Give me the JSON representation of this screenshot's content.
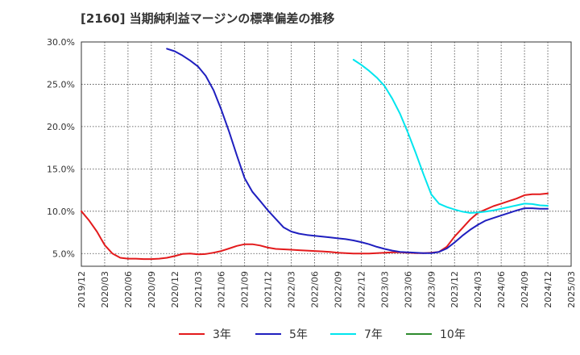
{
  "title": "[2160]  当期純利益マージンの標準偏差の推移",
  "chart_data": {
    "type": "line",
    "title": "[2160]  当期純利益マージンの標準偏差の推移",
    "xlabel": "",
    "ylabel": "",
    "ylim": [
      3.5,
      30.0
    ],
    "grid": true,
    "legend_position": "bottom",
    "x_ticks": [
      "2019/12",
      "2020/03",
      "2020/06",
      "2020/09",
      "2020/12",
      "2021/03",
      "2021/06",
      "2021/09",
      "2021/12",
      "2022/03",
      "2022/06",
      "2022/09",
      "2022/12",
      "2023/03",
      "2023/06",
      "2023/09",
      "2023/12",
      "2024/03",
      "2024/06",
      "2024/09",
      "2024/12",
      "2025/03"
    ],
    "y_ticks": [
      5.0,
      10.0,
      15.0,
      20.0,
      25.0,
      30.0
    ],
    "y_tick_labels": [
      "5.0%",
      "10.0%",
      "15.0%",
      "20.0%",
      "25.0%",
      "30.0%"
    ],
    "series": [
      {
        "name": "3年",
        "color": "#e31a1c",
        "x": [
          "2019/12",
          "2020/01",
          "2020/02",
          "2020/03",
          "2020/04",
          "2020/05",
          "2020/06",
          "2020/07",
          "2020/08",
          "2020/09",
          "2020/10",
          "2020/11",
          "2020/12",
          "2021/01",
          "2021/02",
          "2021/03",
          "2021/04",
          "2021/05",
          "2021/06",
          "2021/07",
          "2021/08",
          "2021/09",
          "2021/10",
          "2021/11",
          "2021/12",
          "2022/01",
          "2022/02",
          "2022/03",
          "2022/04",
          "2022/05",
          "2022/06",
          "2022/07",
          "2022/08",
          "2022/09",
          "2022/10",
          "2022/11",
          "2022/12",
          "2023/01",
          "2023/02",
          "2023/03",
          "2023/04",
          "2023/05",
          "2023/06",
          "2023/07",
          "2023/08",
          "2023/09",
          "2023/10",
          "2023/11",
          "2023/12",
          "2024/01",
          "2024/02",
          "2024/03",
          "2024/04",
          "2024/05",
          "2024/06",
          "2024/07",
          "2024/08",
          "2024/09",
          "2024/10",
          "2024/11",
          "2024/12"
        ],
        "values": [
          10.0,
          8.9,
          7.6,
          6.0,
          5.0,
          4.5,
          4.4,
          4.4,
          4.35,
          4.35,
          4.4,
          4.5,
          4.7,
          4.95,
          5.0,
          4.9,
          4.95,
          5.1,
          5.3,
          5.6,
          5.9,
          6.1,
          6.1,
          5.95,
          5.7,
          5.55,
          5.5,
          5.45,
          5.4,
          5.35,
          5.3,
          5.25,
          5.2,
          5.1,
          5.05,
          5.0,
          5.0,
          5.0,
          5.05,
          5.1,
          5.15,
          5.15,
          5.1,
          5.05,
          5.05,
          5.1,
          5.2,
          5.8,
          7.0,
          8.0,
          9.0,
          9.8,
          10.2,
          10.6,
          10.9,
          11.2,
          11.5,
          11.9,
          12.0,
          12.0,
          12.1
        ]
      },
      {
        "name": "5年",
        "color": "#1f1fbf",
        "x": [
          "2020/11",
          "2020/12",
          "2021/01",
          "2021/02",
          "2021/03",
          "2021/04",
          "2021/05",
          "2021/06",
          "2021/07",
          "2021/08",
          "2021/09",
          "2021/10",
          "2021/11",
          "2021/12",
          "2022/01",
          "2022/02",
          "2022/03",
          "2022/04",
          "2022/05",
          "2022/06",
          "2022/07",
          "2022/08",
          "2022/09",
          "2022/10",
          "2022/11",
          "2022/12",
          "2023/01",
          "2023/02",
          "2023/03",
          "2023/04",
          "2023/05",
          "2023/06",
          "2023/07",
          "2023/08",
          "2023/09",
          "2023/10",
          "2023/11",
          "2023/12",
          "2024/01",
          "2024/02",
          "2024/03",
          "2024/04",
          "2024/05",
          "2024/06",
          "2024/07",
          "2024/08",
          "2024/09",
          "2024/10",
          "2024/11",
          "2024/12"
        ],
        "values": [
          29.2,
          28.9,
          28.4,
          27.8,
          27.1,
          26.0,
          24.3,
          22.0,
          19.4,
          16.6,
          13.9,
          12.3,
          11.2,
          10.1,
          9.1,
          8.1,
          7.6,
          7.35,
          7.2,
          7.1,
          7.0,
          6.9,
          6.8,
          6.7,
          6.55,
          6.35,
          6.1,
          5.8,
          5.55,
          5.35,
          5.2,
          5.15,
          5.1,
          5.05,
          5.05,
          5.2,
          5.6,
          6.3,
          7.1,
          7.8,
          8.4,
          8.9,
          9.2,
          9.5,
          9.8,
          10.1,
          10.35,
          10.35,
          10.3,
          10.3
        ]
      },
      {
        "name": "7年",
        "color": "#00e5ee",
        "x": [
          "2022/11",
          "2022/12",
          "2023/01",
          "2023/02",
          "2023/03",
          "2023/04",
          "2023/05",
          "2023/06",
          "2023/07",
          "2023/08",
          "2023/09",
          "2023/10",
          "2023/11",
          "2023/12",
          "2024/01",
          "2024/02",
          "2024/03",
          "2024/04",
          "2024/05",
          "2024/06",
          "2024/07",
          "2024/08",
          "2024/09",
          "2024/10",
          "2024/11",
          "2024/12"
        ],
        "values": [
          27.9,
          27.3,
          26.6,
          25.8,
          24.8,
          23.3,
          21.5,
          19.3,
          16.9,
          14.4,
          12.0,
          10.9,
          10.5,
          10.2,
          9.95,
          9.8,
          9.85,
          9.95,
          10.1,
          10.3,
          10.5,
          10.7,
          10.9,
          10.85,
          10.7,
          10.65
        ]
      },
      {
        "name": "10年",
        "color": "#2e8b2e",
        "x": [],
        "values": []
      }
    ]
  }
}
